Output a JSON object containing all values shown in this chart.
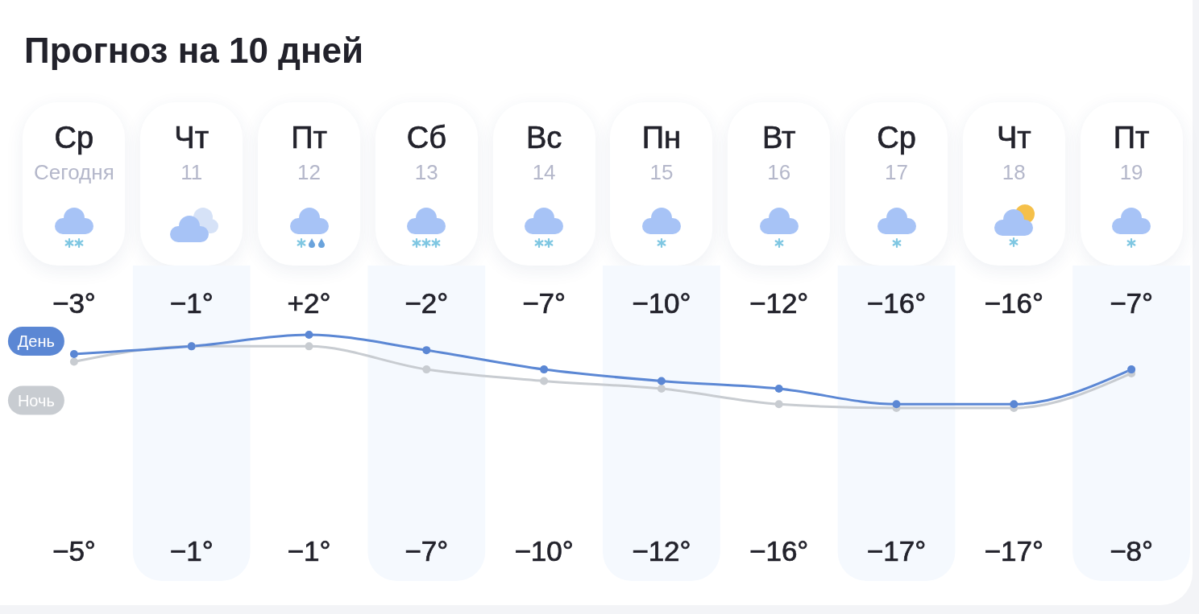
{
  "chart_data": {
    "type": "line",
    "title": "Прогноз на 10 дней",
    "categories": [
      "Ср",
      "Чт",
      "Пт",
      "Сб",
      "Вс",
      "Пн",
      "Вт",
      "Ср",
      "Чт",
      "Пт"
    ],
    "x2lim": [
      10,
      19.5
    ],
    "x2ticks": [
      {
        "value": 10,
        "label": "Сегодня"
      },
      11,
      12,
      13,
      14,
      15,
      16,
      17,
      18,
      19
    ],
    "series": [
      {
        "name": "День",
        "color": "#5b87d4",
        "values": [
          -3,
          -1,
          2,
          -2,
          -7,
          -10,
          -12,
          -16,
          -16,
          -7
        ],
        "value_labels": [
          "−3°",
          "−1°",
          "+2°",
          "−2°",
          "−7°",
          "−10°",
          "−12°",
          "−16°",
          "−16°",
          "−7°"
        ]
      },
      {
        "name": "Ночь",
        "color": "#c8ccd1",
        "values": [
          -5,
          -1,
          -1,
          -7,
          -10,
          -12,
          -16,
          -17,
          -17,
          -8
        ],
        "value_labels": [
          "−5°",
          "−1°",
          "−1°",
          "−7°",
          "−10°",
          "−12°",
          "−16°",
          "−17°",
          "−17°",
          "−8°"
        ]
      }
    ],
    "tick_labels": "x",
    "marker": "circle",
    "line_style": "solid",
    "bands": [
      {
        "axis": "x2",
        "from": 10.5,
        "to": 11.5,
        "color": "#f5f9fe"
      },
      {
        "axis": "x2",
        "from": 12.5,
        "to": 13.5,
        "color": "#f5f9fe"
      },
      {
        "axis": "x2",
        "from": 14.5,
        "to": 15.5,
        "color": "#f5f9fe"
      },
      {
        "axis": "x2",
        "from": 16.5,
        "to": 17.5,
        "color": "#f5f9fe"
      },
      {
        "axis": "x2",
        "from": 18.5,
        "to": 19.5,
        "color": "#f5f9fe"
      }
    ]
  }
}
